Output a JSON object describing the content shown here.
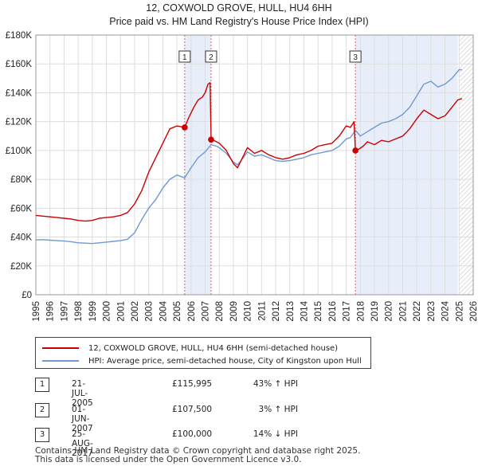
{
  "chart_data": {
    "type": "line",
    "title": "12, COXWOLD GROVE, HULL, HU4 6HH",
    "subtitle": "Price paid vs. HM Land Registry's House Price Index (HPI)",
    "xlabel": "",
    "ylabel": "",
    "xlim": [
      1995,
      2026
    ],
    "ylim": [
      0,
      180000
    ],
    "x_ticks": [
      "1995",
      "1996",
      "1997",
      "1998",
      "1999",
      "2000",
      "2001",
      "2002",
      "2003",
      "2004",
      "2005",
      "2006",
      "2007",
      "2008",
      "2009",
      "2010",
      "2011",
      "2012",
      "2013",
      "2014",
      "2015",
      "2016",
      "2017",
      "2018",
      "2019",
      "2020",
      "2021",
      "2022",
      "2023",
      "2024",
      "2025",
      "2026"
    ],
    "y_ticks": [
      {
        "value": 0,
        "label": "£0"
      },
      {
        "value": 20000,
        "label": "£20K"
      },
      {
        "value": 40000,
        "label": "£40K"
      },
      {
        "value": 60000,
        "label": "£60K"
      },
      {
        "value": 80000,
        "label": "£80K"
      },
      {
        "value": 100000,
        "label": "£100K"
      },
      {
        "value": 120000,
        "label": "£120K"
      },
      {
        "value": 140000,
        "label": "£140K"
      },
      {
        "value": 160000,
        "label": "£160K"
      },
      {
        "value": 180000,
        "label": "£180K"
      }
    ],
    "grid": true,
    "legend_position": "below",
    "colors": {
      "property": "#cc0000",
      "hpi": "#6f99d4",
      "shade": "#e8eef9",
      "marker_line": "#e06060"
    },
    "series": [
      {
        "name": "12, COXWOLD GROVE, HULL, HU4 6HH (semi-detached house)",
        "color": "#cc0000",
        "x": [
          1995.0,
          1995.5,
          1996.0,
          1996.5,
          1997.0,
          1997.5,
          1998.0,
          1998.5,
          1999.0,
          1999.5,
          2000.0,
          2000.5,
          2001.0,
          2001.5,
          2002.0,
          2002.5,
          2003.0,
          2003.5,
          2004.0,
          2004.5,
          2005.0,
          2005.55,
          2005.8,
          2006.2,
          2006.5,
          2006.8,
          2007.0,
          2007.2,
          2007.35,
          2007.42,
          2007.5,
          2008.0,
          2008.5,
          2009.0,
          2009.3,
          2009.7,
          2010.0,
          2010.5,
          2011.0,
          2011.5,
          2012.0,
          2012.5,
          2013.0,
          2013.5,
          2014.0,
          2014.5,
          2015.0,
          2015.5,
          2016.0,
          2016.5,
          2017.0,
          2017.3,
          2017.55,
          2017.65,
          2017.9,
          2018.2,
          2018.5,
          2019.0,
          2019.5,
          2020.0,
          2020.5,
          2021.0,
          2021.5,
          2022.0,
          2022.5,
          2023.0,
          2023.5,
          2024.0,
          2024.5,
          2024.9,
          2025.2
        ],
        "values": [
          55000,
          54500,
          54000,
          53500,
          53000,
          52500,
          51500,
          51000,
          51500,
          53000,
          53500,
          54000,
          55000,
          57000,
          63000,
          72000,
          85000,
          95000,
          105000,
          115000,
          117000,
          115995,
          122000,
          130000,
          135000,
          137000,
          140000,
          146000,
          147000,
          108000,
          107500,
          105000,
          100000,
          91000,
          88000,
          96000,
          102000,
          98000,
          100000,
          97000,
          95000,
          94000,
          95000,
          97000,
          98000,
          100000,
          103000,
          104000,
          105000,
          110000,
          117000,
          116000,
          120000,
          100000,
          101000,
          103000,
          106000,
          104000,
          107000,
          106000,
          108000,
          110000,
          115000,
          122000,
          128000,
          125000,
          122000,
          124000,
          130000,
          135000,
          136000
        ],
        "sales": [
          {
            "x": 2005.55,
            "value": 115995
          },
          {
            "x": 2007.42,
            "value": 107500
          },
          {
            "x": 2017.65,
            "value": 100000
          }
        ]
      },
      {
        "name": "HPI: Average price, semi-detached house, City of Kingston upon Hull",
        "color": "#6f99d4",
        "x": [
          1995.0,
          1995.5,
          1996.0,
          1996.5,
          1997.0,
          1997.5,
          1998.0,
          1998.5,
          1999.0,
          1999.5,
          2000.0,
          2000.5,
          2001.0,
          2001.5,
          2002.0,
          2002.5,
          2003.0,
          2003.5,
          2004.0,
          2004.5,
          2005.0,
          2005.55,
          2006.0,
          2006.5,
          2007.0,
          2007.42,
          2007.8,
          2008.0,
          2008.5,
          2009.0,
          2009.3,
          2009.7,
          2010.0,
          2010.5,
          2011.0,
          2011.5,
          2012.0,
          2012.5,
          2013.0,
          2013.5,
          2014.0,
          2014.5,
          2015.0,
          2015.5,
          2016.0,
          2016.5,
          2017.0,
          2017.3,
          2017.65,
          2018.0,
          2018.5,
          2019.0,
          2019.5,
          2020.0,
          2020.5,
          2021.0,
          2021.5,
          2022.0,
          2022.5,
          2023.0,
          2023.5,
          2024.0,
          2024.5,
          2025.0,
          2025.2
        ],
        "values": [
          38000,
          38200,
          37800,
          37500,
          37200,
          36800,
          36000,
          35800,
          35500,
          36000,
          36500,
          37000,
          37500,
          38500,
          43000,
          52000,
          60000,
          66000,
          74000,
          80000,
          83000,
          81000,
          88000,
          95000,
          99000,
          104000,
          103000,
          102000,
          98000,
          92000,
          90000,
          95000,
          99000,
          96000,
          97000,
          95000,
          93000,
          92500,
          93000,
          94000,
          95000,
          97000,
          98000,
          99000,
          100000,
          103000,
          108000,
          109000,
          114000,
          110000,
          113000,
          116000,
          119000,
          120000,
          122000,
          125000,
          130000,
          138000,
          146000,
          148000,
          144000,
          146000,
          150000,
          156000,
          156000
        ]
      }
    ],
    "annotations": [
      {
        "label": "1",
        "x": 2005.55
      },
      {
        "label": "2",
        "x": 2007.42
      },
      {
        "label": "3",
        "x": 2017.65
      }
    ],
    "shaded_regions": [
      [
        2005.55,
        2007.42
      ],
      [
        2017.65,
        2024.9
      ]
    ],
    "hatched_region_from": 2025.0
  },
  "legend": {
    "property_label": "12, COXWOLD GROVE, HULL, HU4 6HH (semi-detached house)",
    "hpi_label": "HPI: Average price, semi-detached house, City of Kingston upon Hull"
  },
  "sales_table": [
    {
      "num": "1",
      "date": "21-JUL-2005",
      "price": "£115,995",
      "delta": "43% ↑ HPI"
    },
    {
      "num": "2",
      "date": "01-JUN-2007",
      "price": "£107,500",
      "delta": "3% ↑ HPI"
    },
    {
      "num": "3",
      "date": "25-AUG-2017",
      "price": "£100,000",
      "delta": "14% ↓ HPI"
    }
  ],
  "footer": {
    "line1": "Contains HM Land Registry data © Crown copyright and database right 2025.",
    "line2": "This data is licensed under the Open Government Licence v3.0."
  }
}
